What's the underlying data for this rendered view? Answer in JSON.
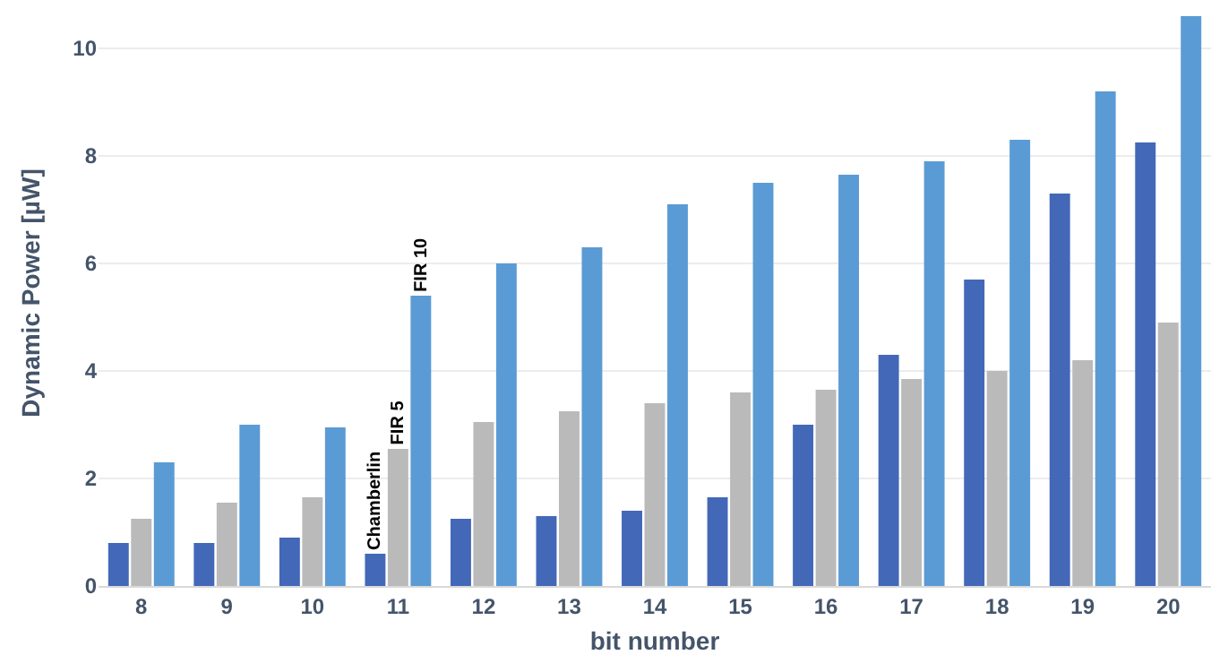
{
  "chart_data": {
    "type": "bar",
    "xlabel": "bit number",
    "ylabel": "Dynamic Power [µW]",
    "categories": [
      "8",
      "9",
      "10",
      "11",
      "12",
      "13",
      "14",
      "15",
      "16",
      "17",
      "18",
      "19",
      "20"
    ],
    "series": [
      {
        "name": "Chamberlin",
        "color": "#4468b8",
        "values": [
          0.8,
          0.8,
          0.9,
          0.6,
          1.25,
          1.3,
          1.4,
          1.65,
          3.0,
          4.3,
          5.7,
          7.3,
          8.25
        ]
      },
      {
        "name": "FIR 5",
        "color": "#bababa",
        "values": [
          1.25,
          1.55,
          1.65,
          2.55,
          3.05,
          3.25,
          3.4,
          3.6,
          3.65,
          3.85,
          4.0,
          4.2,
          4.9
        ]
      },
      {
        "name": "FIR 10",
        "color": "#5b9bd5",
        "values": [
          2.3,
          3.0,
          2.95,
          5.4,
          6.0,
          6.3,
          7.1,
          7.5,
          7.65,
          7.9,
          8.3,
          9.2,
          10.6
        ]
      }
    ],
    "ylim": [
      0,
      10.9
    ],
    "yticks": [
      0,
      2,
      4,
      6,
      8,
      10
    ],
    "grid": "y",
    "legend": false
  }
}
